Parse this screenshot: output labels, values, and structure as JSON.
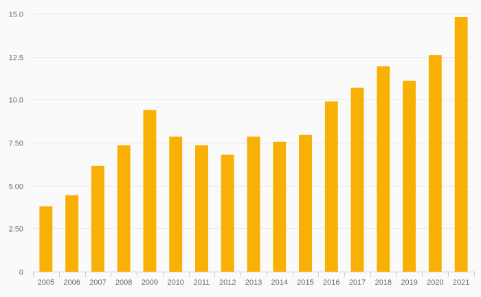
{
  "chart_data": {
    "type": "bar",
    "title": "",
    "xlabel": "",
    "ylabel": "",
    "categories": [
      "2005",
      "2006",
      "2007",
      "2008",
      "2009",
      "2010",
      "2011",
      "2012",
      "2013",
      "2014",
      "2015",
      "2016",
      "2017",
      "2018",
      "2019",
      "2020",
      "2021"
    ],
    "series": [
      {
        "values": [
          3.8,
          4.45,
          6.15,
          7.35,
          9.4,
          7.85,
          7.35,
          6.8,
          7.85,
          7.55,
          7.95,
          9.9,
          10.7,
          11.95,
          11.1,
          12.6,
          14.8
        ],
        "color": "#f9b004"
      }
    ],
    "ylim": [
      0,
      15
    ],
    "yticks": [
      0,
      2.5,
      5,
      7.5,
      10,
      12.5,
      15
    ],
    "ytick_labels": [
      "0",
      "2.50",
      "5.00",
      "7.50",
      "10.0",
      "12.5",
      "15.0"
    ],
    "grid": true,
    "legend": "none"
  }
}
